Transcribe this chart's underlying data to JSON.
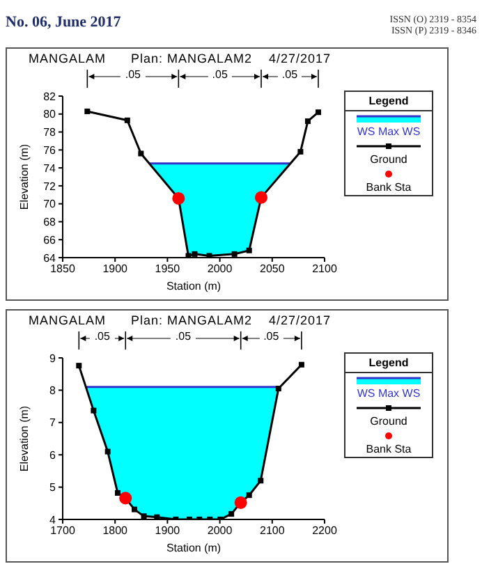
{
  "chart_data": [
    {
      "type": "line",
      "title": "MANGALAM      Plan: MANGALAM2    4/27/2017",
      "xlabel": "Station (m)",
      "ylabel": "Elevation (m)",
      "xlim": [
        1850,
        2100
      ],
      "xticks": [
        1850,
        1900,
        1950,
        2000,
        2050,
        2100
      ],
      "ylim": [
        64,
        82
      ],
      "yticks": [
        64,
        66,
        68,
        70,
        72,
        74,
        76,
        78,
        80,
        82
      ],
      "legend": "right",
      "legend_title": "Legend",
      "annotations": [
        "No. 06, June 2017",
        "ISSN (O) 2319 - 8354",
        "ISSN (P) 2319 - 8346",
        ".05",
        ".05",
        ".05"
      ],
      "series": [
        {
          "name": "WS Max WS",
          "color": "#3333cc",
          "marker": "none",
          "x": [
            1932.6,
            1960.6,
            1970,
            1976,
            1990,
            2014,
            2028,
            2039.5,
            2067.4
          ],
          "values": [
            74.5,
            74.5,
            74.5,
            74.5,
            74.5,
            74.5,
            74.5,
            74.5,
            74.5
          ],
          "lower": [
            74.5,
            70.6,
            64.2,
            64.4,
            64.2,
            64.4,
            64.8,
            70.7,
            74.5
          ],
          "upper": [
            74.5,
            74.5,
            74.5,
            74.5,
            74.5,
            74.5,
            74.5,
            74.5,
            74.5
          ]
        },
        {
          "name": "Ground",
          "color": "#000000",
          "marker": "square",
          "x": [
            1873.5,
            1911.7,
            1924.7,
            1960.6,
            1970,
            1976,
            1990,
            2014,
            2028,
            2039.5,
            2077,
            2084,
            2094
          ],
          "values": [
            80.3,
            79.3,
            75.6,
            70.6,
            64.2,
            64.4,
            64.2,
            64.4,
            64.8,
            70.7,
            75.8,
            79.2,
            80.2
          ]
        },
        {
          "name": "Bank Sta",
          "type": "scatter",
          "color": "#ff0000",
          "marker": "circle",
          "x": [
            1960.6,
            2039.5
          ],
          "values": [
            70.6,
            70.7
          ]
        }
      ]
    },
    {
      "type": "line",
      "title": "MANGALAM      Plan: MANGALAM2    4/27/2017",
      "xlabel": "Station (m)",
      "ylabel": "Elevation (m)",
      "xlim": [
        1700,
        2200
      ],
      "xticks": [
        1700,
        1800,
        1900,
        2000,
        2100,
        2200
      ],
      "ylim": [
        4,
        9
      ],
      "yticks": [
        4,
        5,
        6,
        7,
        8,
        9
      ],
      "legend": "right",
      "legend_title": "Legend",
      "annotations": [
        ".05",
        ".05",
        ".05"
      ],
      "series": [
        {
          "name": "WS Max WS",
          "color": "#3333cc",
          "marker": "none",
          "x": [
            1744,
            1759,
            1786,
            1805,
            1820,
            1837,
            1855,
            1880,
            1916,
            1942,
            1961,
            1981,
            2001,
            2022,
            2040,
            2056,
            2078,
            2112,
            2115
          ],
          "values": [
            8.1,
            8.1,
            8.1,
            8.1,
            8.1,
            8.1,
            8.1,
            8.1,
            8.1,
            8.1,
            8.1,
            8.1,
            8.1,
            8.1,
            8.1,
            8.1,
            8.1,
            8.1,
            8.1
          ],
          "lower": [
            8.1,
            7.37,
            6.1,
            4.82,
            4.66,
            4.31,
            4.1,
            4.07,
            4.0,
            4.0,
            4.0,
            4.0,
            4.0,
            4.17,
            4.52,
            4.75,
            5.2,
            8.05,
            8.1
          ],
          "upper": [
            8.1,
            8.1,
            8.1,
            8.1,
            8.1,
            8.1,
            8.1,
            8.1,
            8.1,
            8.1,
            8.1,
            8.1,
            8.1,
            8.1,
            8.1,
            8.1,
            8.1,
            8.1,
            8.1
          ]
        },
        {
          "name": "Ground",
          "color": "#000000",
          "marker": "square",
          "x": [
            1731,
            1759,
            1786,
            1805,
            1820,
            1837,
            1855,
            1880,
            1916,
            1942,
            1961,
            1981,
            2001,
            2022,
            2040,
            2056,
            2078,
            2112,
            2156
          ],
          "values": [
            8.76,
            7.37,
            6.1,
            4.82,
            4.66,
            4.31,
            4.1,
            4.07,
            4.0,
            4.0,
            4.0,
            4.0,
            4.0,
            4.17,
            4.52,
            4.75,
            5.2,
            8.05,
            8.79
          ]
        },
        {
          "name": "Bank Sta",
          "type": "scatter",
          "color": "#ff0000",
          "marker": "circle",
          "x": [
            1820,
            2040
          ],
          "values": [
            4.66,
            4.52
          ]
        }
      ]
    }
  ]
}
